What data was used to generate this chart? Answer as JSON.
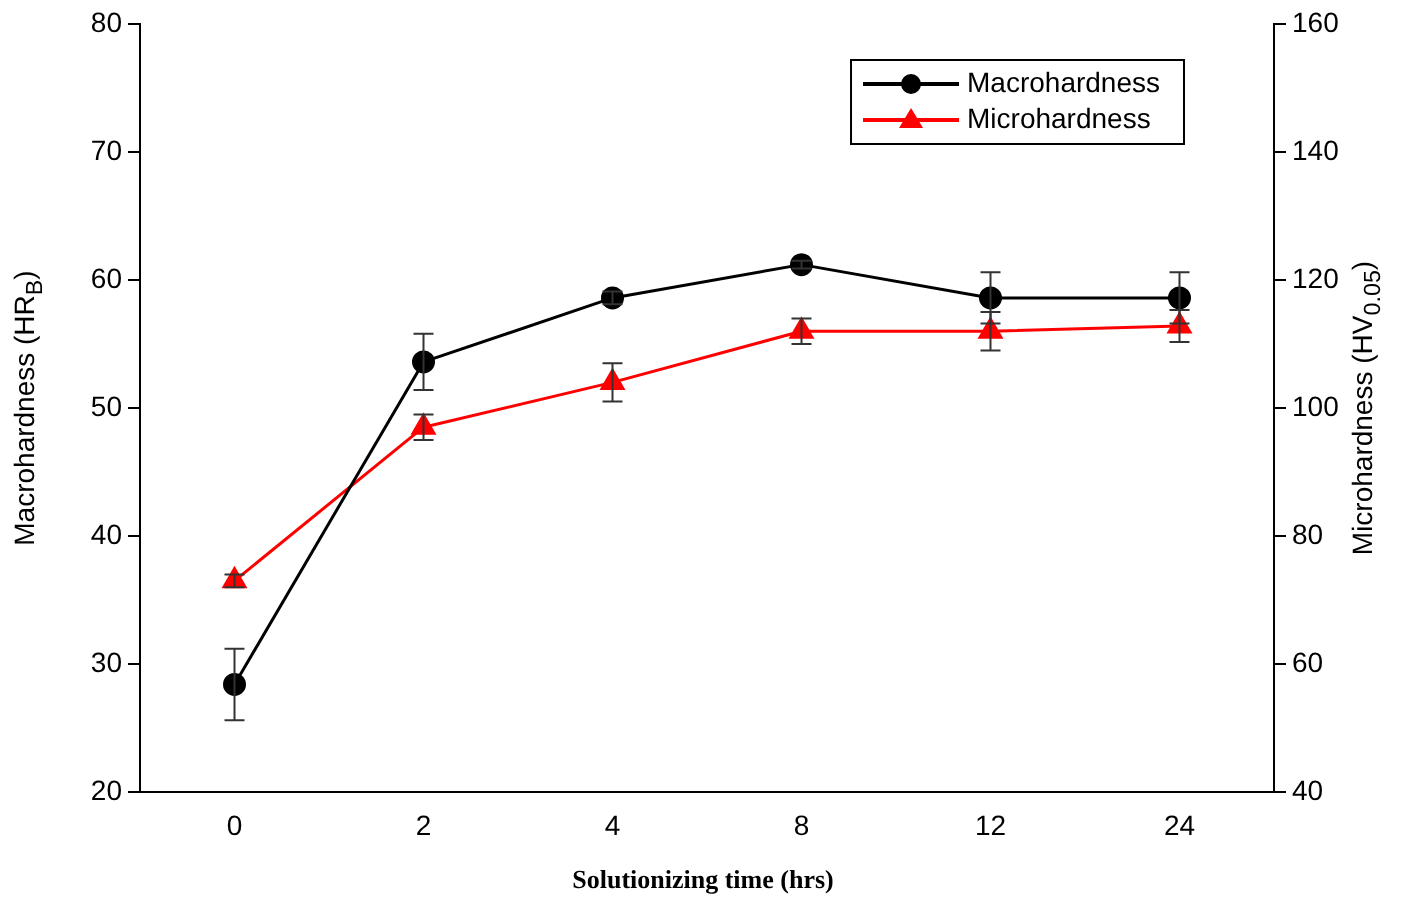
{
  "chart_data": {
    "type": "line",
    "xlabel": "Solutionizing time (hrs)",
    "ylabel": "Macrohardness (HR$_{B}$)",
    "y2label": "Microhardness (HV$_{0.05}$)",
    "categories": [
      "0",
      "2",
      "4",
      "8",
      "12",
      "24"
    ],
    "series": [
      {
        "name": "Macrohardness",
        "color": "#000000",
        "marker": "circle",
        "values": [
          28.4,
          53.6,
          58.6,
          61.2,
          58.6,
          58.6
        ],
        "errors": [
          2.8,
          2.2,
          0.5,
          0.3,
          2,
          2
        ]
      },
      {
        "name": "Microhardness",
        "color": "#ff0000",
        "marker": "triangle",
        "axis": "y2",
        "values": [
          73,
          97,
          104,
          112,
          112,
          112.8
        ],
        "errors": [
          1,
          2,
          3,
          2,
          3,
          2.5
        ]
      }
    ],
    "ylim": [
      20,
      80
    ],
    "yticks": [
      20,
      30,
      40,
      50,
      60,
      70,
      80
    ],
    "y2lim": [
      40,
      160
    ],
    "y2ticks": [
      40,
      60,
      80,
      100,
      120,
      140,
      160
    ],
    "grid": false,
    "legend": "top right"
  }
}
